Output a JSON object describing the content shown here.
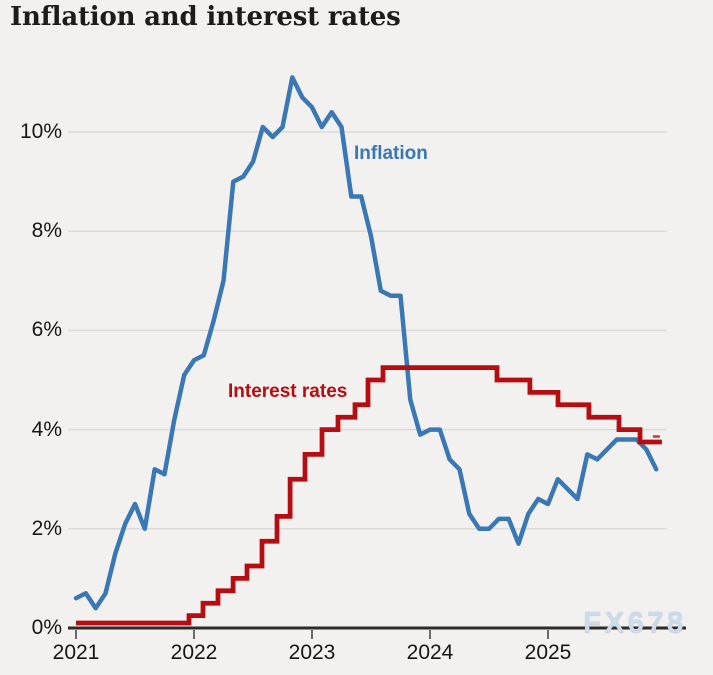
{
  "title": "Inflation and interest rates",
  "watermark": "FX678",
  "series_labels": {
    "inflation": "Inflation",
    "interest_rates": "Interest rates"
  },
  "colors": {
    "background": "#f2f1ef",
    "gridline": "#dcdbd9",
    "axis": "#2e2a26",
    "tick": "#6b6b6b",
    "text": "#161616",
    "title_text": "#1d1c1a",
    "inflation_line": "#3a78b5",
    "interest_line": "#b50d11",
    "watermark_text": "#ccdbeb"
  },
  "chart_data": {
    "type": "line",
    "title": "Inflation and interest rates",
    "legend": "inline-labels",
    "x_axis": {
      "tick_labels": [
        "2021",
        "2022",
        "2023",
        "2024",
        "2025"
      ],
      "range_years": [
        2021.0,
        2026.17
      ],
      "gridlines": false
    },
    "y_axis": {
      "unit": "%",
      "tick_labels": [
        "0%",
        "2%",
        "4%",
        "6%",
        "8%",
        "10%"
      ],
      "tick_values": [
        0,
        2,
        4,
        6,
        8,
        10
      ],
      "range": [
        0,
        11.65
      ],
      "gridlines": true
    },
    "series": [
      {
        "name": "Inflation",
        "style": "line",
        "color": "#3a78b5",
        "frequency": "monthly",
        "start": "2020-12",
        "values": [
          0.6,
          0.7,
          0.4,
          0.7,
          1.5,
          2.1,
          2.5,
          2.0,
          3.2,
          3.1,
          4.2,
          5.1,
          5.4,
          5.5,
          6.2,
          7.0,
          9.0,
          9.1,
          9.4,
          10.1,
          9.9,
          10.1,
          11.1,
          10.7,
          10.5,
          10.1,
          10.4,
          10.1,
          8.7,
          8.7,
          7.9,
          6.8,
          6.7,
          6.7,
          4.6,
          3.9,
          4.0,
          4.0,
          3.4,
          3.2,
          2.3,
          2.0,
          2.0,
          2.2,
          2.2,
          1.7,
          2.3,
          2.6,
          2.5,
          3.0,
          2.8,
          2.6,
          3.5,
          3.4,
          3.6,
          3.8,
          3.8,
          3.8,
          3.6,
          3.2
        ]
      },
      {
        "name": "Interest rates",
        "style": "step",
        "color": "#b50d11",
        "points": [
          [
            2021.0,
            0.1
          ],
          [
            2021.958,
            0.25
          ],
          [
            2022.076,
            0.5
          ],
          [
            2022.203,
            0.75
          ],
          [
            2022.331,
            1.0
          ],
          [
            2022.449,
            1.25
          ],
          [
            2022.576,
            1.75
          ],
          [
            2022.703,
            2.25
          ],
          [
            2022.814,
            3.0
          ],
          [
            2022.941,
            3.5
          ],
          [
            2023.085,
            4.0
          ],
          [
            2023.22,
            4.25
          ],
          [
            2023.364,
            4.5
          ],
          [
            2023.475,
            5.0
          ],
          [
            2023.602,
            5.25
          ],
          [
            2024.568,
            5.0
          ],
          [
            2024.847,
            4.75
          ],
          [
            2025.085,
            4.5
          ],
          [
            2025.347,
            4.25
          ],
          [
            2025.602,
            4.0
          ],
          [
            2025.78,
            3.75
          ]
        ],
        "end_year": 2025.965
      }
    ]
  }
}
